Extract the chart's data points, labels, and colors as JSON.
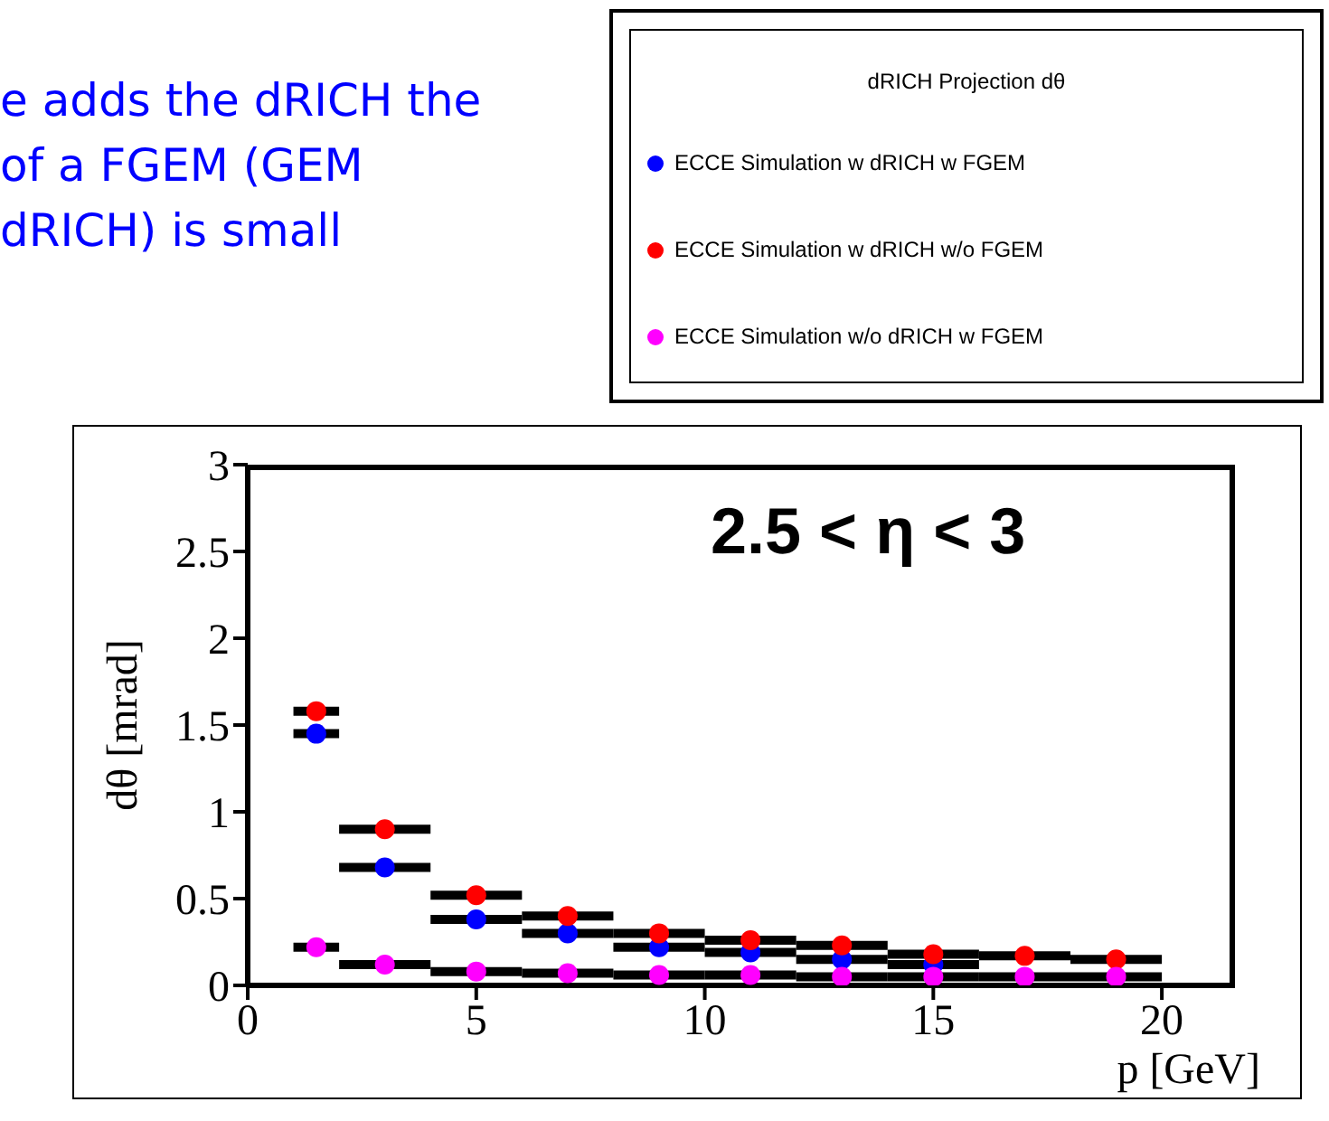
{
  "chart_data": {
    "type": "scatter",
    "xlabel": "p [GeV]",
    "ylabel": "dθ [mrad]",
    "legend_title": "dRICH Projection dθ",
    "annotations": [
      "e adds the dRICH the",
      "of a FGEM (GEM",
      "dRICH) is small",
      "2.5 < η < 3"
    ],
    "x": [
      1.5,
      3,
      5,
      7,
      9,
      11,
      13,
      15,
      17,
      19
    ],
    "series": [
      {
        "name": "ECCE Simulation w dRICH w FGEM",
        "color": "#0000ff",
        "values": [
          1.45,
          0.68,
          0.38,
          0.3,
          0.22,
          0.19,
          0.15,
          0.12,
          null,
          null
        ],
        "xerrors": [
          0.5,
          1,
          1,
          1,
          1,
          1,
          1,
          1,
          null,
          null
        ]
      },
      {
        "name": "ECCE Simulation w dRICH w/o FGEM",
        "color": "#ff0000",
        "values": [
          1.58,
          0.9,
          0.52,
          0.4,
          0.3,
          0.26,
          0.23,
          0.18,
          0.17,
          0.15
        ],
        "xerrors": [
          0.5,
          1,
          1,
          1,
          1,
          1,
          1,
          1,
          1,
          1
        ]
      },
      {
        "name": "ECCE Simulation w/o dRICH w FGEM",
        "color": "#ff00ff",
        "values": [
          0.22,
          0.12,
          0.08,
          0.07,
          0.06,
          0.06,
          0.05,
          0.05,
          0.05,
          0.05
        ],
        "xerrors": [
          0.5,
          1,
          1,
          1,
          1,
          1,
          1,
          1,
          1,
          1
        ]
      }
    ],
    "xlim": [
      0,
      21.6
    ],
    "xticks": [
      0,
      5,
      10,
      15,
      20
    ],
    "ylim": [
      0,
      3
    ],
    "yticks": [
      0,
      0.5,
      1,
      1.5,
      2,
      2.5,
      3
    ],
    "grid": false,
    "legend": "top right",
    "marker": "circle"
  }
}
